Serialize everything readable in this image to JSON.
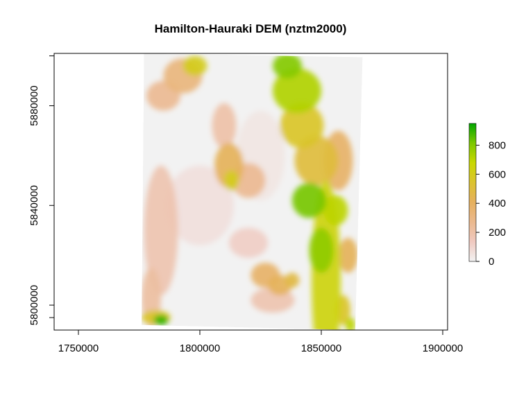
{
  "chart_data": {
    "type": "heatmap",
    "title": "Hamilton-Hauraki DEM (nztm2000)",
    "xlabel": "",
    "ylabel": "",
    "xlim": [
      1740000,
      1902000
    ],
    "ylim": [
      5790000,
      5901000
    ],
    "x_ticks": [
      "1750000",
      "1800000",
      "1850000",
      "1900000"
    ],
    "y_ticks": [
      "5800000",
      "5840000",
      "5880000"
    ],
    "x_tick_values": [
      1750000,
      1800000,
      1850000,
      1900000
    ],
    "y_tick_values": [
      5800000,
      5840000,
      5880000
    ],
    "raster_extent": {
      "corners": [
        [
          1777000,
          5901000
        ],
        [
          1867000,
          5899500
        ],
        [
          1864000,
          5790000
        ],
        [
          1776000,
          5792000
        ]
      ]
    },
    "legend": {
      "position": "right",
      "range": [
        0,
        950
      ],
      "ticks": [
        "0",
        "200",
        "400",
        "600",
        "800"
      ],
      "tick_values": [
        0,
        200,
        400,
        600,
        800
      ],
      "colors": [
        "#f2f2f2",
        "#f0c9c0",
        "#ebb98e",
        "#e6b05e",
        "#dcc32f",
        "#c9d800",
        "#7cc800",
        "#00a600"
      ]
    },
    "features": [
      {
        "x": 1852000,
        "y": 5810000,
        "rx": 6000,
        "ry": 40000,
        "value": 650
      },
      {
        "x": 1850000,
        "y": 5822000,
        "rx": 5000,
        "ry": 9000,
        "value": 780
      },
      {
        "x": 1845000,
        "y": 5842000,
        "rx": 7000,
        "ry": 7000,
        "value": 820
      },
      {
        "x": 1856000,
        "y": 5838000,
        "rx": 5000,
        "ry": 6000,
        "value": 700
      },
      {
        "x": 1848000,
        "y": 5858000,
        "rx": 9000,
        "ry": 10000,
        "value": 500
      },
      {
        "x": 1842000,
        "y": 5872000,
        "rx": 9000,
        "ry": 9000,
        "value": 560
      },
      {
        "x": 1840000,
        "y": 5886000,
        "rx": 10000,
        "ry": 9000,
        "value": 720
      },
      {
        "x": 1836000,
        "y": 5896000,
        "rx": 6000,
        "ry": 5000,
        "value": 800
      },
      {
        "x": 1857000,
        "y": 5858000,
        "rx": 6000,
        "ry": 12000,
        "value": 380
      },
      {
        "x": 1793000,
        "y": 5892000,
        "rx": 8000,
        "ry": 7000,
        "value": 320
      },
      {
        "x": 1798000,
        "y": 5896000,
        "rx": 5000,
        "ry": 4000,
        "value": 600
      },
      {
        "x": 1785000,
        "y": 5884000,
        "rx": 7000,
        "ry": 6000,
        "value": 260
      },
      {
        "x": 1810000,
        "y": 5872000,
        "rx": 5000,
        "ry": 9000,
        "value": 200
      },
      {
        "x": 1812000,
        "y": 5856000,
        "rx": 6000,
        "ry": 9000,
        "value": 420
      },
      {
        "x": 1813000,
        "y": 5850000,
        "rx": 3000,
        "ry": 4000,
        "value": 600
      },
      {
        "x": 1820000,
        "y": 5850000,
        "rx": 7000,
        "ry": 7000,
        "value": 260
      },
      {
        "x": 1784000,
        "y": 5830000,
        "rx": 7000,
        "ry": 26000,
        "value": 180
      },
      {
        "x": 1780000,
        "y": 5803000,
        "rx": 4000,
        "ry": 12000,
        "value": 220
      },
      {
        "x": 1782000,
        "y": 5795000,
        "rx": 6000,
        "ry": 3000,
        "value": 560
      },
      {
        "x": 1784000,
        "y": 5794000,
        "rx": 3000,
        "ry": 2000,
        "value": 900
      },
      {
        "x": 1827000,
        "y": 5812000,
        "rx": 6000,
        "ry": 5000,
        "value": 380
      },
      {
        "x": 1833000,
        "y": 5808000,
        "rx": 5000,
        "ry": 4000,
        "value": 420
      },
      {
        "x": 1838000,
        "y": 5810000,
        "rx": 3000,
        "ry": 3000,
        "value": 480
      },
      {
        "x": 1830000,
        "y": 5802000,
        "rx": 9000,
        "ry": 5000,
        "value": 180
      },
      {
        "x": 1820000,
        "y": 5825000,
        "rx": 8000,
        "ry": 6000,
        "value": 120
      },
      {
        "x": 1861000,
        "y": 5820000,
        "rx": 4000,
        "ry": 7000,
        "value": 420
      },
      {
        "x": 1859000,
        "y": 5798000,
        "rx": 3000,
        "ry": 6000,
        "value": 560
      },
      {
        "x": 1862000,
        "y": 5792000,
        "rx": 2000,
        "ry": 3000,
        "value": 700
      },
      {
        "x": 1800000,
        "y": 5840000,
        "rx": 14000,
        "ry": 16000,
        "value": 60
      },
      {
        "x": 1825000,
        "y": 5860000,
        "rx": 10000,
        "ry": 18000,
        "value": 40
      }
    ]
  }
}
